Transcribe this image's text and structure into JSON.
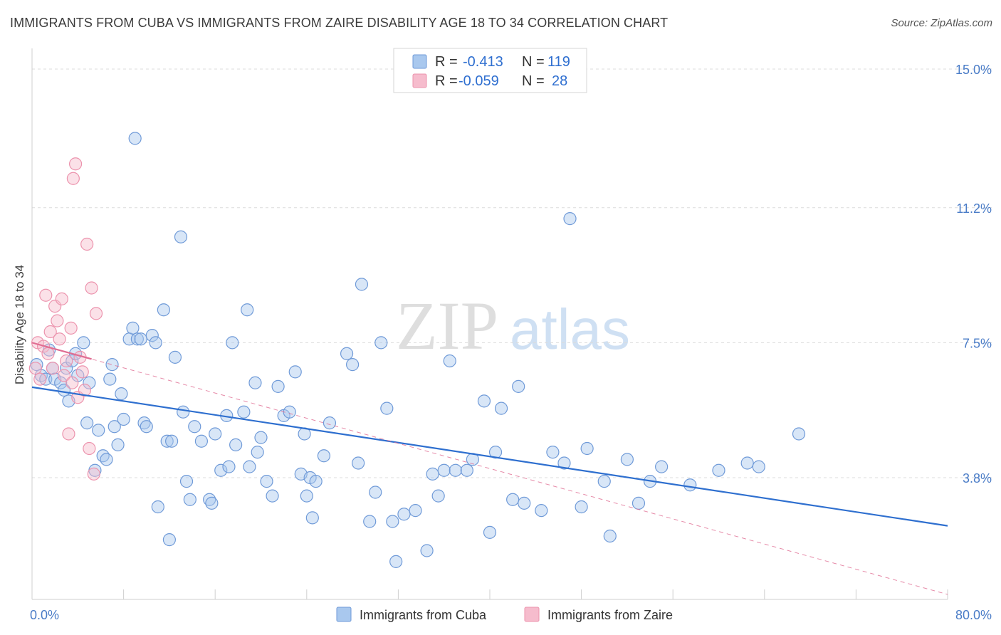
{
  "title": "IMMIGRANTS FROM CUBA VS IMMIGRANTS FROM ZAIRE DISABILITY AGE 18 TO 34 CORRELATION CHART",
  "source": "Source: ZipAtlas.com",
  "watermark": {
    "zip": "ZIP",
    "atlas": "atlas"
  },
  "colors": {
    "cuba_fill": "#a9c8ee",
    "cuba_stroke": "#6f9ad8",
    "cuba_line": "#2e6fcf",
    "zaire_fill": "#f6bccd",
    "zaire_stroke": "#ec93ad",
    "zaire_line": "#e06d92",
    "grid": "#dcdcdc",
    "tick_label": "#4a7cc7"
  },
  "stats": [
    {
      "r_label": "R =",
      "r_value": "-0.413",
      "n_label": "N =",
      "n_value": "119"
    },
    {
      "r_label": "R =",
      "r_value": "-0.059",
      "n_label": "N =",
      "n_value": "28"
    }
  ],
  "chart_data": {
    "type": "scatter",
    "ylabel": "Disability Age 18 to 34",
    "xlim": [
      0,
      80
    ],
    "ylim": [
      0,
      15.6
    ],
    "x_tick_labels": [
      {
        "value": 0,
        "label": "0.0%"
      },
      {
        "value": 80,
        "label": "80.0%"
      }
    ],
    "y_tick_labels": [
      {
        "value": 3.8,
        "label": "3.8%"
      },
      {
        "value": 7.5,
        "label": "7.5%"
      },
      {
        "value": 11.2,
        "label": "11.2%"
      },
      {
        "value": 15.0,
        "label": "15.0%"
      }
    ],
    "grid": true,
    "legend": "bottom",
    "series": [
      {
        "name": "Immigrants from Cuba",
        "trend": {
          "x": [
            0,
            80
          ],
          "y": [
            6.28,
            2.48
          ]
        },
        "points": [
          [
            0.4,
            6.9
          ],
          [
            0.8,
            6.6
          ],
          [
            1.2,
            6.5
          ],
          [
            1.5,
            7.3
          ],
          [
            1.8,
            6.8
          ],
          [
            2.0,
            6.5
          ],
          [
            2.5,
            6.4
          ],
          [
            2.8,
            6.2
          ],
          [
            3.0,
            6.8
          ],
          [
            3.2,
            5.9
          ],
          [
            3.5,
            7.0
          ],
          [
            3.8,
            7.2
          ],
          [
            4.0,
            6.6
          ],
          [
            4.5,
            7.5
          ],
          [
            4.8,
            5.3
          ],
          [
            5.0,
            6.4
          ],
          [
            5.5,
            4.0
          ],
          [
            5.8,
            5.1
          ],
          [
            6.2,
            4.4
          ],
          [
            6.5,
            4.3
          ],
          [
            6.8,
            6.5
          ],
          [
            7.0,
            6.9
          ],
          [
            7.2,
            5.2
          ],
          [
            7.5,
            4.7
          ],
          [
            7.8,
            6.1
          ],
          [
            8.0,
            5.4
          ],
          [
            8.5,
            7.6
          ],
          [
            8.8,
            7.9
          ],
          [
            9.0,
            13.1
          ],
          [
            9.2,
            7.6
          ],
          [
            9.5,
            7.6
          ],
          [
            9.8,
            5.3
          ],
          [
            10.0,
            5.2
          ],
          [
            10.5,
            7.7
          ],
          [
            10.8,
            7.5
          ],
          [
            11.0,
            3.0
          ],
          [
            11.5,
            8.4
          ],
          [
            11.8,
            4.8
          ],
          [
            12.0,
            2.1
          ],
          [
            12.2,
            4.8
          ],
          [
            12.5,
            7.1
          ],
          [
            13.0,
            10.4
          ],
          [
            13.2,
            5.6
          ],
          [
            13.5,
            3.7
          ],
          [
            13.8,
            3.2
          ],
          [
            14.2,
            5.2
          ],
          [
            14.8,
            4.8
          ],
          [
            15.5,
            3.2
          ],
          [
            15.7,
            3.1
          ],
          [
            16.0,
            5.0
          ],
          [
            16.5,
            4.0
          ],
          [
            17.0,
            5.5
          ],
          [
            17.2,
            4.1
          ],
          [
            17.5,
            7.5
          ],
          [
            17.8,
            4.7
          ],
          [
            18.5,
            5.6
          ],
          [
            18.8,
            8.4
          ],
          [
            19.0,
            4.1
          ],
          [
            19.5,
            6.4
          ],
          [
            19.7,
            4.5
          ],
          [
            20.0,
            4.9
          ],
          [
            20.5,
            3.7
          ],
          [
            21.0,
            3.3
          ],
          [
            21.5,
            6.3
          ],
          [
            22.0,
            5.5
          ],
          [
            22.5,
            5.6
          ],
          [
            23.0,
            6.7
          ],
          [
            23.5,
            3.9
          ],
          [
            23.8,
            5.0
          ],
          [
            24.0,
            3.3
          ],
          [
            24.3,
            3.8
          ],
          [
            24.5,
            2.7
          ],
          [
            24.8,
            3.7
          ],
          [
            25.5,
            4.4
          ],
          [
            26.0,
            5.3
          ],
          [
            27.5,
            7.2
          ],
          [
            28.0,
            6.9
          ],
          [
            28.5,
            4.2
          ],
          [
            28.8,
            9.1
          ],
          [
            29.5,
            2.6
          ],
          [
            30.0,
            3.4
          ],
          [
            30.5,
            7.5
          ],
          [
            31.0,
            5.7
          ],
          [
            31.5,
            2.6
          ],
          [
            31.8,
            1.5
          ],
          [
            32.5,
            2.8
          ],
          [
            33.5,
            2.9
          ],
          [
            34.5,
            1.8
          ],
          [
            35.0,
            3.9
          ],
          [
            35.5,
            3.3
          ],
          [
            36.0,
            4.0
          ],
          [
            36.5,
            7.0
          ],
          [
            37.0,
            4.0
          ],
          [
            38.0,
            4.0
          ],
          [
            38.5,
            4.3
          ],
          [
            39.5,
            5.9
          ],
          [
            40.0,
            2.3
          ],
          [
            40.5,
            4.5
          ],
          [
            41.0,
            5.7
          ],
          [
            42.0,
            3.2
          ],
          [
            42.5,
            6.3
          ],
          [
            43.0,
            3.1
          ],
          [
            44.5,
            2.9
          ],
          [
            45.5,
            4.5
          ],
          [
            46.5,
            4.2
          ],
          [
            47.0,
            10.9
          ],
          [
            48.0,
            3.0
          ],
          [
            48.5,
            4.6
          ],
          [
            50.0,
            3.7
          ],
          [
            50.5,
            2.2
          ],
          [
            52.0,
            4.3
          ],
          [
            53.0,
            3.1
          ],
          [
            54.0,
            3.7
          ],
          [
            55.0,
            4.1
          ],
          [
            57.5,
            3.6
          ],
          [
            60.0,
            4.0
          ],
          [
            62.5,
            4.2
          ],
          [
            63.5,
            4.1
          ],
          [
            67.0,
            5.0
          ]
        ]
      },
      {
        "name": "Immigrants from Zaire",
        "trend": {
          "x": [
            0,
            80
          ],
          "y": [
            7.5,
            0.6
          ]
        },
        "trend_solid_x": [
          0,
          5.2
        ],
        "points": [
          [
            0.3,
            6.8
          ],
          [
            0.5,
            7.5
          ],
          [
            0.7,
            6.5
          ],
          [
            1.0,
            7.4
          ],
          [
            1.2,
            8.8
          ],
          [
            1.4,
            7.2
          ],
          [
            1.6,
            7.8
          ],
          [
            1.8,
            6.8
          ],
          [
            2.0,
            8.5
          ],
          [
            2.2,
            8.1
          ],
          [
            2.4,
            7.6
          ],
          [
            2.6,
            8.7
          ],
          [
            2.8,
            6.6
          ],
          [
            3.0,
            7.0
          ],
          [
            3.2,
            5.0
          ],
          [
            3.4,
            7.9
          ],
          [
            3.5,
            6.4
          ],
          [
            3.6,
            12.0
          ],
          [
            3.8,
            12.4
          ],
          [
            4.0,
            6.0
          ],
          [
            4.2,
            7.1
          ],
          [
            4.4,
            6.7
          ],
          [
            4.6,
            6.2
          ],
          [
            4.8,
            10.2
          ],
          [
            5.0,
            4.6
          ],
          [
            5.2,
            9.0
          ],
          [
            5.4,
            3.9
          ],
          [
            5.6,
            8.3
          ]
        ]
      }
    ]
  }
}
